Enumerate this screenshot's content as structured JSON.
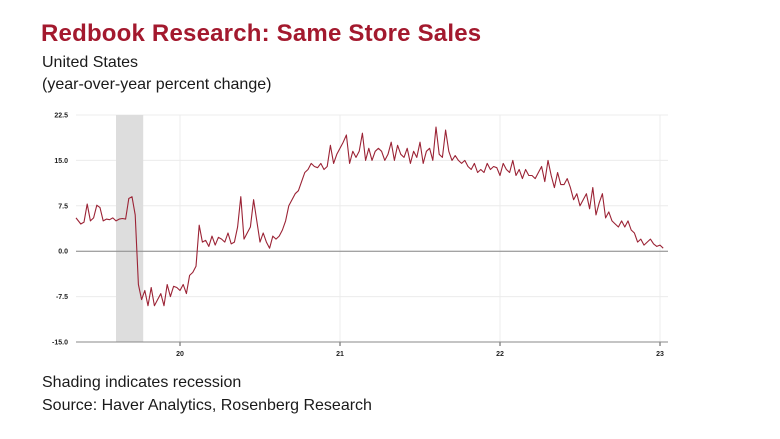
{
  "header": {
    "title": "Redbook Research: Same Store Sales",
    "subtitle_1": "United States",
    "subtitle_2": "(year-over-year percent change)"
  },
  "footer": {
    "note": "Shading indicates recession",
    "source": "Source: Haver Analytics, Rosenberg Research"
  },
  "chart_data": {
    "type": "line",
    "title": "Redbook Research: Same Store Sales",
    "xlabel": "",
    "ylabel": "",
    "ylim": [
      -15.0,
      22.5
    ],
    "xlim": [
      2019.35,
      2023.05
    ],
    "yticks": [
      22.5,
      15.0,
      7.5,
      0.0,
      -7.5,
      -15.0
    ],
    "ytick_labels": [
      "22.5",
      "15.0",
      "7.5",
      "0.0",
      "-7.5",
      "-15.0"
    ],
    "xticks": [
      2020,
      2021,
      2022,
      2023
    ],
    "xtick_labels": [
      "20",
      "21",
      "22",
      "23"
    ],
    "grid": true,
    "colors": {
      "series": "#9b2335",
      "recession": "#dddddd",
      "zero_line": "#888888"
    },
    "recession": {
      "start": 2019.6,
      "end": 2019.77,
      "label": "Shading indicates recession"
    },
    "series": [
      {
        "name": "Same Store Sales",
        "x": [
          2019.35,
          2019.38,
          2019.4,
          2019.42,
          2019.44,
          2019.46,
          2019.48,
          2019.5,
          2019.52,
          2019.54,
          2019.56,
          2019.58,
          2019.6,
          2019.62,
          2019.64,
          2019.66,
          2019.68,
          2019.7,
          2019.72,
          2019.74,
          2019.76,
          2019.78,
          2019.8,
          2019.82,
          2019.84,
          2019.86,
          2019.88,
          2019.9,
          2019.92,
          2019.94,
          2019.96,
          2019.98,
          2020.0,
          2020.02,
          2020.04,
          2020.06,
          2020.08,
          2020.1,
          2020.12,
          2020.14,
          2020.16,
          2020.18,
          2020.2,
          2020.22,
          2020.24,
          2020.26,
          2020.28,
          2020.3,
          2020.32,
          2020.34,
          2020.36,
          2020.38,
          2020.4,
          2020.42,
          2020.44,
          2020.46,
          2020.48,
          2020.5,
          2020.52,
          2020.54,
          2020.56,
          2020.58,
          2020.6,
          2020.62,
          2020.64,
          2020.66,
          2020.68,
          2020.7,
          2020.72,
          2020.74,
          2020.76,
          2020.78,
          2020.8,
          2020.82,
          2020.84,
          2020.86,
          2020.88,
          2020.9,
          2020.92,
          2020.94,
          2020.96,
          2020.98,
          2021.0,
          2021.02,
          2021.04,
          2021.06,
          2021.08,
          2021.1,
          2021.12,
          2021.14,
          2021.16,
          2021.18,
          2021.2,
          2021.22,
          2021.24,
          2021.26,
          2021.28,
          2021.3,
          2021.32,
          2021.34,
          2021.36,
          2021.38,
          2021.4,
          2021.42,
          2021.44,
          2021.46,
          2021.48,
          2021.5,
          2021.52,
          2021.54,
          2021.56,
          2021.58,
          2021.6,
          2021.62,
          2021.64,
          2021.66,
          2021.68,
          2021.7,
          2021.72,
          2021.74,
          2021.76,
          2021.78,
          2021.8,
          2021.82,
          2021.84,
          2021.86,
          2021.88,
          2021.9,
          2021.92,
          2021.94,
          2021.96,
          2021.98,
          2022.0,
          2022.02,
          2022.04,
          2022.06,
          2022.08,
          2022.1,
          2022.12,
          2022.14,
          2022.16,
          2022.18,
          2022.2,
          2022.22,
          2022.24,
          2022.26,
          2022.28,
          2022.3,
          2022.32,
          2022.34,
          2022.36,
          2022.38,
          2022.4,
          2022.42,
          2022.44,
          2022.46,
          2022.48,
          2022.5,
          2022.52,
          2022.54,
          2022.56,
          2022.58,
          2022.6,
          2022.62,
          2022.64,
          2022.66,
          2022.68,
          2022.7,
          2022.72,
          2022.74,
          2022.76,
          2022.78,
          2022.8,
          2022.82,
          2022.84,
          2022.86,
          2022.88,
          2022.9,
          2022.92,
          2022.94,
          2022.96,
          2022.98,
          2023.0,
          2023.02
        ],
        "values": [
          5.5,
          4.5,
          4.8,
          7.8,
          5.0,
          5.5,
          7.6,
          7.2,
          5.0,
          5.3,
          5.2,
          5.5,
          5.0,
          5.3,
          5.4,
          5.3,
          8.7,
          9.0,
          6.0,
          -5.5,
          -8.0,
          -6.5,
          -9.0,
          -6.0,
          -9.0,
          -8.0,
          -7.0,
          -9.0,
          -5.5,
          -7.5,
          -5.8,
          -6.0,
          -6.5,
          -5.5,
          -7.0,
          -4.0,
          -3.5,
          -2.5,
          4.3,
          1.5,
          1.8,
          0.8,
          2.5,
          1.0,
          2.3,
          2.0,
          1.5,
          3.0,
          1.2,
          1.5,
          4.0,
          9.0,
          2.0,
          3.0,
          4.0,
          8.5,
          5.0,
          1.5,
          3.0,
          1.5,
          0.5,
          2.5,
          2.0,
          2.5,
          3.5,
          5.0,
          7.5,
          8.5,
          9.5,
          10.0,
          11.5,
          13.0,
          13.5,
          14.5,
          14.0,
          13.8,
          14.5,
          13.5,
          14.0,
          17.5,
          14.5,
          16.0,
          17.0,
          18.0,
          19.2,
          14.5,
          16.5,
          15.5,
          16.5,
          19.5,
          15.0,
          17.0,
          15.0,
          16.5,
          17.0,
          16.5,
          15.0,
          16.0,
          18.0,
          15.0,
          17.5,
          16.0,
          15.5,
          17.0,
          14.5,
          16.5,
          15.5,
          18.0,
          14.5,
          16.5,
          17.0,
          15.0,
          20.5,
          16.0,
          15.5,
          20.0,
          16.5,
          15.0,
          15.8,
          15.0,
          14.5,
          15.0,
          14.0,
          13.5,
          14.5,
          13.0,
          13.5,
          13.0,
          14.5,
          13.5,
          14.0,
          13.8,
          12.5,
          14.5,
          13.5,
          13.0,
          15.0,
          12.5,
          13.5,
          12.0,
          13.5,
          12.5,
          12.5,
          12.0,
          13.0,
          14.0,
          11.5,
          15.0,
          12.5,
          10.5,
          13.0,
          11.0,
          11.0,
          12.0,
          10.5,
          8.5,
          9.5,
          7.5,
          8.5,
          9.5,
          7.0,
          10.5,
          6.0,
          8.0,
          9.5,
          5.5,
          6.5,
          5.0,
          4.5,
          4.0,
          5.0,
          4.0,
          5.0,
          3.5,
          3.0,
          1.5,
          2.0,
          1.0,
          1.5,
          2.0,
          1.2,
          0.8,
          1.0,
          0.5
        ]
      }
    ]
  }
}
